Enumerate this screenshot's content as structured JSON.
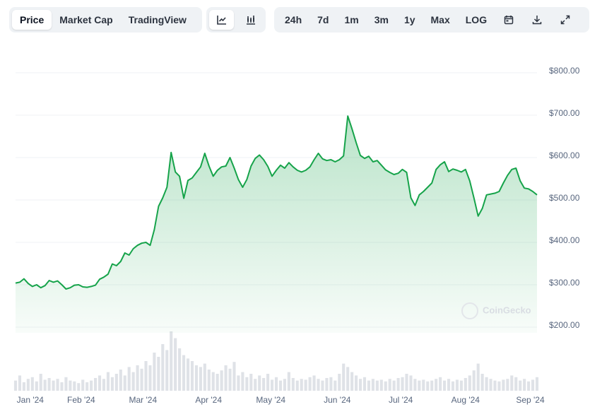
{
  "toolbar": {
    "view_tabs": [
      "Price",
      "Market Cap",
      "TradingView"
    ],
    "ranges": [
      "24h",
      "7d",
      "1m",
      "3m",
      "1y",
      "Max",
      "LOG"
    ]
  },
  "watermark": "CoinGecko",
  "chart_data": {
    "type": "area",
    "series": [
      {
        "color": "#16a34a",
        "values": [
          304,
          306,
          314,
          303,
          296,
          300,
          293,
          298,
          310,
          306,
          309,
          300,
          290,
          293,
          299,
          300,
          295,
          294,
          296,
          299,
          313,
          318,
          325,
          349,
          345,
          355,
          375,
          370,
          385,
          393,
          398,
          400,
          393,
          430,
          485,
          505,
          530,
          612,
          566,
          556,
          504,
          546,
          552,
          565,
          578,
          610,
          580,
          556,
          570,
          578,
          580,
          600,
          575,
          548,
          530,
          548,
          580,
          598,
          606,
          595,
          579,
          556,
          570,
          582,
          575,
          588,
          578,
          570,
          566,
          570,
          578,
          595,
          610,
          597,
          593,
          595,
          590,
          595,
          604,
          698,
          668,
          635,
          605,
          598,
          603,
          590,
          593,
          582,
          571,
          565,
          560,
          563,
          572,
          565,
          505,
          487,
          512,
          520,
          530,
          540,
          572,
          583,
          590,
          567,
          573,
          570,
          566,
          572,
          545,
          505,
          462,
          480,
          512,
          514,
          516,
          520,
          540,
          558,
          572,
          575,
          545,
          528,
          526,
          520,
          512
        ]
      }
    ],
    "volume": {
      "color": "#dfe2e7",
      "values": [
        12,
        18,
        10,
        14,
        16,
        11,
        20,
        13,
        15,
        12,
        14,
        10,
        16,
        12,
        11,
        9,
        13,
        10,
        12,
        15,
        18,
        14,
        22,
        16,
        20,
        25,
        18,
        28,
        22,
        30,
        26,
        35,
        30,
        45,
        40,
        55,
        48,
        70,
        62,
        50,
        42,
        38,
        35,
        30,
        28,
        32,
        25,
        22,
        20,
        24,
        30,
        26,
        34,
        18,
        22,
        16,
        20,
        14,
        18,
        15,
        20,
        13,
        16,
        12,
        14,
        22,
        15,
        12,
        14,
        13,
        16,
        18,
        14,
        12,
        15,
        16,
        12,
        20,
        32,
        28,
        22,
        18,
        14,
        16,
        12,
        14,
        12,
        13,
        11,
        14,
        12,
        15,
        16,
        20,
        18,
        14,
        12,
        13,
        11,
        12,
        14,
        16,
        12,
        14,
        11,
        13,
        12,
        15,
        18,
        24,
        32,
        20,
        16,
        14,
        12,
        11,
        13,
        14,
        18,
        16,
        12,
        14,
        11,
        13,
        16
      ]
    },
    "xlim": [
      0,
      124
    ],
    "xticks": [
      {
        "value": 3.5,
        "label": "Jan '24"
      },
      {
        "value": 15.6,
        "label": "Feb '24"
      },
      {
        "value": 30.3,
        "label": "Mar '24"
      },
      {
        "value": 45.9,
        "label": "Apr '24"
      },
      {
        "value": 60.7,
        "label": "May '24"
      },
      {
        "value": 76.5,
        "label": "Jun '24"
      },
      {
        "value": 91.6,
        "label": "Jul '24"
      },
      {
        "value": 107,
        "label": "Aug '24"
      },
      {
        "value": 122.4,
        "label": "Sep '24"
      }
    ],
    "ylim": [
      200,
      800
    ],
    "yticks": [
      {
        "value": 200,
        "label": "$200.00"
      },
      {
        "value": 300,
        "label": "$300.00"
      },
      {
        "value": 400,
        "label": "$400.00"
      },
      {
        "value": 500,
        "label": "$500.00"
      },
      {
        "value": 600,
        "label": "$600.00"
      },
      {
        "value": 700,
        "label": "$700.00"
      },
      {
        "value": 800,
        "label": "$800.00"
      }
    ],
    "grid": true
  }
}
